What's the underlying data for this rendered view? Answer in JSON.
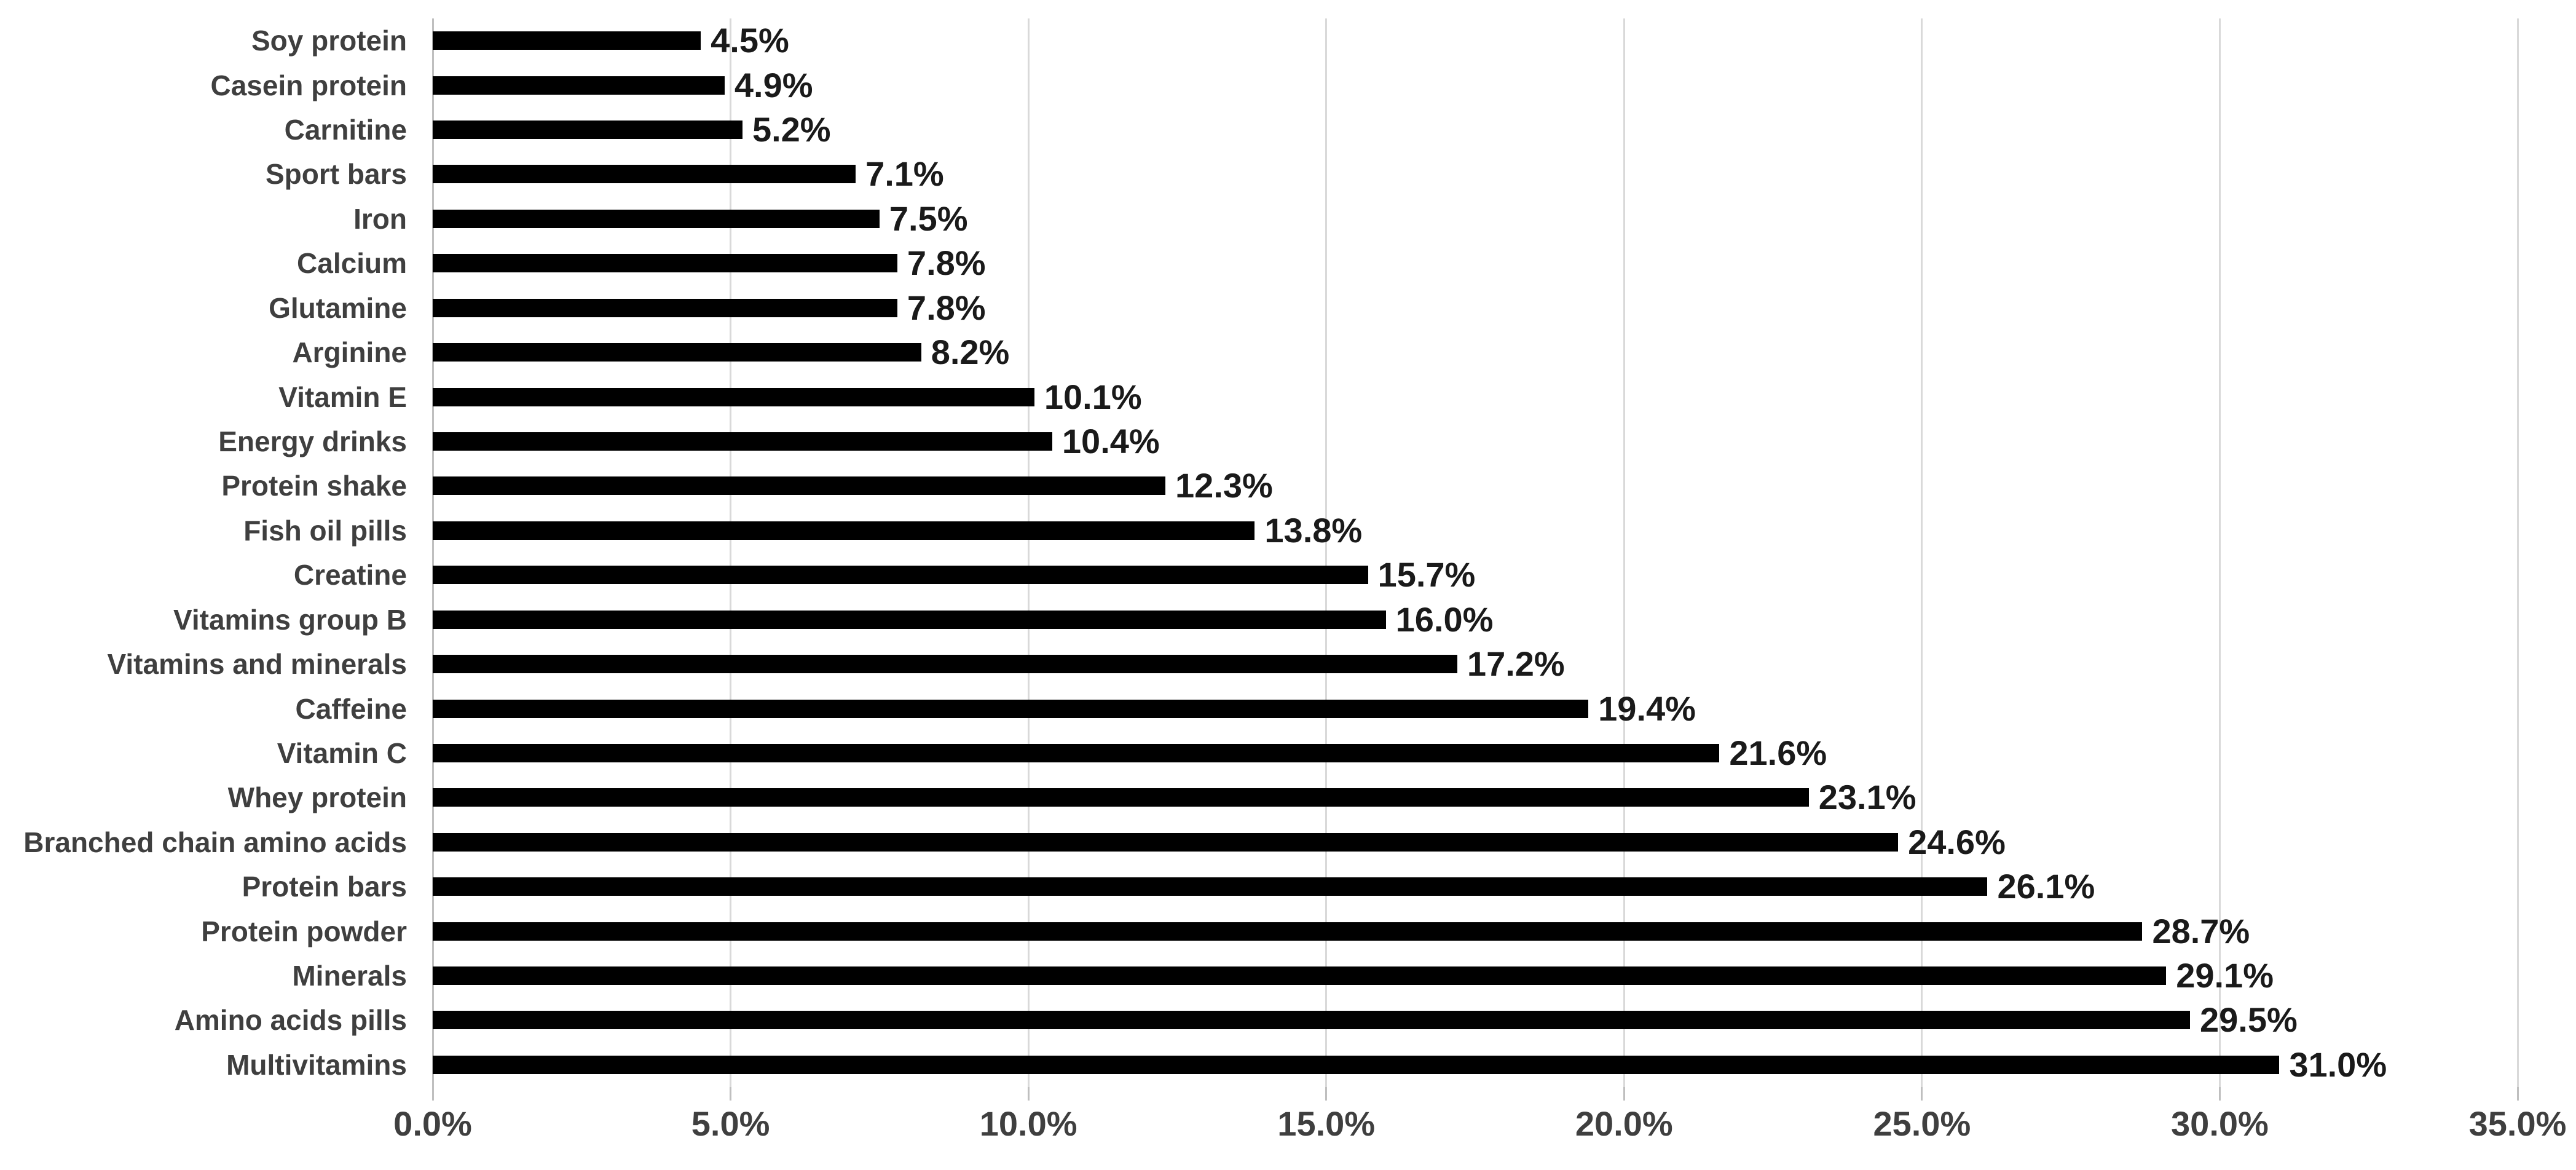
{
  "chart_data": {
    "type": "bar",
    "orientation": "horizontal",
    "title": "",
    "xlabel": "",
    "ylabel": "",
    "categories": [
      "Soy protein",
      "Casein protein",
      "Carnitine",
      "Sport bars",
      "Iron",
      "Calcium",
      "Glutamine",
      "Arginine",
      "Vitamin E",
      "Energy drinks",
      "Protein shake",
      "Fish oil pills",
      "Creatine",
      "Vitamins group B",
      "Vitamins and minerals",
      "Caffeine",
      "Vitamin C",
      "Whey protein",
      "Branched chain amino acids",
      "Protein bars",
      "Protein powder",
      "Minerals",
      "Amino acids pills",
      "Multivitamins"
    ],
    "values": [
      4.5,
      4.9,
      5.2,
      7.1,
      7.5,
      7.8,
      7.8,
      8.2,
      10.1,
      10.4,
      12.3,
      13.8,
      15.7,
      16.0,
      17.2,
      19.4,
      21.6,
      23.1,
      24.6,
      26.1,
      28.7,
      29.1,
      29.5,
      31.0
    ],
    "value_labels": [
      "4.5%",
      "4.9%",
      "5.2%",
      "7.1%",
      "7.5%",
      "7.8%",
      "7.8%",
      "8.2%",
      "10.1%",
      "10.4%",
      "12.3%",
      "13.8%",
      "15.7%",
      "16.0%",
      "17.2%",
      "19.4%",
      "21.6%",
      "23.1%",
      "24.6%",
      "26.1%",
      "28.7%",
      "29.1%",
      "29.5%",
      "31.0%"
    ],
    "x_ticks": [
      "0.0%",
      "5.0%",
      "10.0%",
      "15.0%",
      "20.0%",
      "25.0%",
      "30.0%",
      "35.0%"
    ],
    "xlim": [
      0,
      35
    ],
    "grid": true,
    "legend": false,
    "colors": {
      "bar": "#000000",
      "category_label": "#3f3f3f",
      "value_label": "#1a1a1a",
      "axis_label": "#3f3f3f",
      "gridline": "#d9d9d9",
      "axis_line": "#bfbfbf",
      "background": "#ffffff"
    }
  }
}
